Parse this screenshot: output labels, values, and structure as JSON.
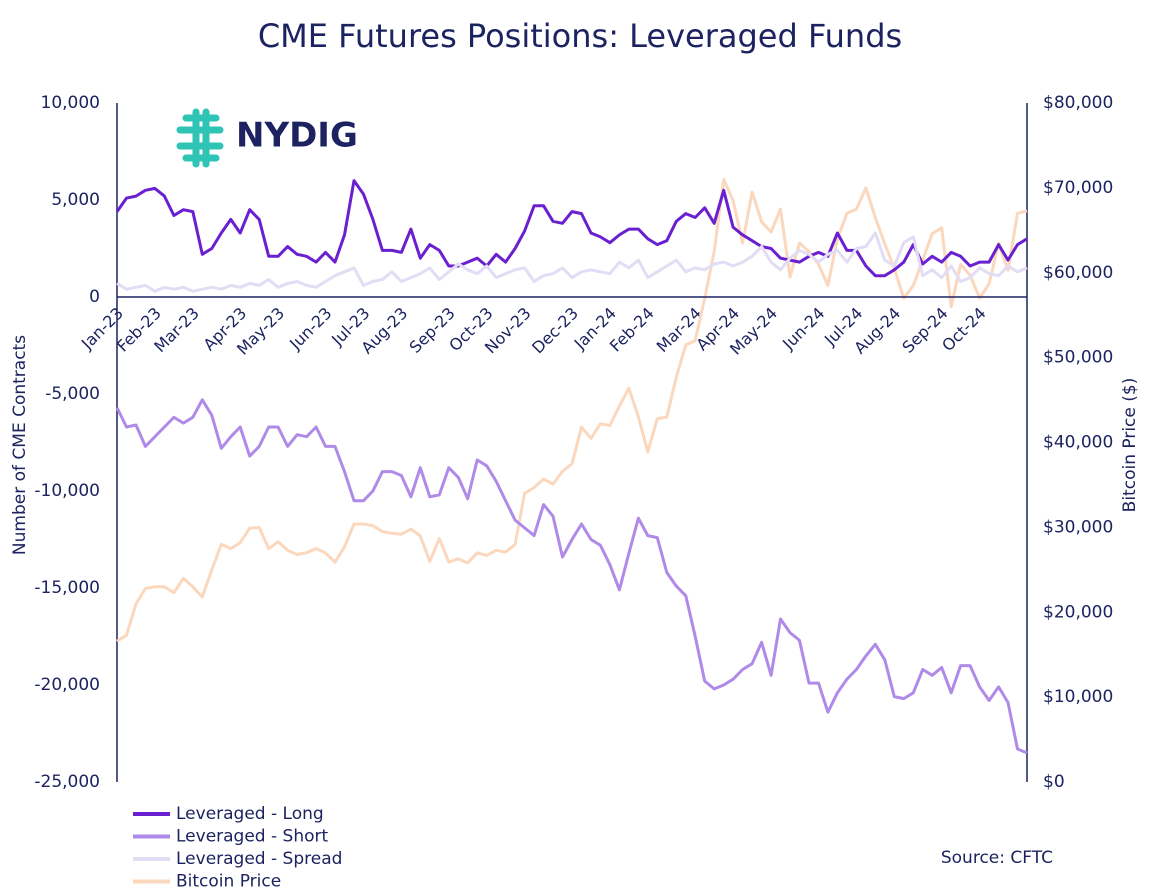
{
  "logo": "NYDIG",
  "chart_data": {
    "type": "line",
    "title": "CME Futures Positions: Leveraged Funds",
    "y_label": "Number of CME Contracts",
    "y2_label": "Bitcoin Price ($)",
    "source": "Source: CFTC",
    "categories": [
      "Jan-23",
      null,
      null,
      null,
      "Feb-23",
      null,
      null,
      null,
      "Mar-23",
      null,
      null,
      null,
      null,
      "Apr-23",
      null,
      null,
      null,
      "May-23",
      null,
      null,
      null,
      null,
      "Jun-23",
      null,
      null,
      null,
      "Jul-23",
      null,
      null,
      null,
      "Aug-23",
      null,
      null,
      null,
      null,
      "Sep-23",
      null,
      null,
      null,
      "Oct-23",
      null,
      null,
      null,
      "Nov-23",
      null,
      null,
      null,
      null,
      "Dec-23",
      null,
      null,
      null,
      "Jan-24",
      null,
      null,
      null,
      "Feb-24",
      null,
      null,
      null,
      null,
      "Mar-24",
      null,
      null,
      null,
      "Apr-24",
      null,
      null,
      null,
      "May-24",
      null,
      null,
      null,
      null,
      "Jun-24",
      null,
      null,
      null,
      "Jul-24",
      null,
      null,
      null,
      "Aug-24",
      null,
      null,
      null,
      null,
      "Sep-24",
      null,
      null,
      null,
      "Oct-24",
      null,
      null,
      null,
      null,
      null
    ],
    "ylim": [
      -25000,
      10000
    ],
    "yticks": [
      {
        "value": -25000,
        "label": "-25,000"
      },
      {
        "value": -20000,
        "label": "-20,000"
      },
      {
        "value": -15000,
        "label": "-15,000"
      },
      {
        "value": -10000,
        "label": "-10,000"
      },
      {
        "value": -5000,
        "label": "-5,000"
      },
      0,
      {
        "value": 5000,
        "label": "5,000"
      },
      {
        "value": 10000,
        "label": "10,000"
      }
    ],
    "y2lim": [
      0,
      80000
    ],
    "y2ticks": [
      {
        "value": 0,
        "label": "$0"
      },
      {
        "value": 10000,
        "label": "$10,000"
      },
      {
        "value": 20000,
        "label": "$20,000"
      },
      {
        "value": 30000,
        "label": "$30,000"
      },
      {
        "value": 40000,
        "label": "$40,000"
      },
      {
        "value": 50000,
        "label": "$50,000"
      },
      {
        "value": 60000,
        "label": "$60,000"
      },
      {
        "value": 70000,
        "label": "$70,000"
      },
      {
        "value": 80000,
        "label": "$80,000"
      }
    ],
    "legend": "bottom-left",
    "series": [
      {
        "name": "Leveraged - Long",
        "color": "#6a1fd0",
        "values": [
          4400,
          5100,
          5200,
          5500,
          5600,
          5200,
          4200,
          4500,
          4400,
          2200,
          2500,
          3300,
          4000,
          3300,
          4500,
          4000,
          2100,
          2100,
          2600,
          2200,
          2100,
          1800,
          2300,
          1800,
          3200,
          6000,
          5300,
          4000,
          2400,
          2400,
          2300,
          3500,
          2000,
          2700,
          2400,
          1600,
          1600,
          1800,
          2000,
          1600,
          2200,
          1800,
          2500,
          3400,
          4700,
          4700,
          3900,
          3800,
          4400,
          4300,
          3300,
          3100,
          2800,
          3200,
          3500,
          3500,
          3000,
          2700,
          2900,
          3900,
          4300,
          4100,
          4600,
          3800,
          5500,
          3600,
          3200,
          2900,
          2600,
          2500,
          2000,
          1900,
          1800,
          2100,
          2300,
          2100,
          3300,
          2400,
          2400,
          1600,
          1100,
          1100,
          1400,
          1800,
          2700,
          1700,
          2100,
          1800,
          2300,
          2100,
          1600,
          1800,
          1800,
          2700,
          1900,
          2700,
          3000
        ]
      },
      {
        "name": "Leveraged - Short",
        "color": "#b08ae8",
        "values": [
          -5700,
          -6700,
          -6600,
          -7700,
          -7200,
          -6700,
          -6200,
          -6500,
          -6200,
          -5300,
          -6100,
          -7800,
          -7200,
          -6700,
          -8200,
          -7700,
          -6700,
          -6700,
          -7700,
          -7100,
          -7200,
          -6700,
          -7700,
          -7700,
          -9000,
          -10500,
          -10500,
          -10000,
          -9000,
          -9000,
          -9200,
          -10300,
          -8800,
          -10300,
          -10200,
          -8800,
          -9300,
          -10400,
          -8400,
          -8700,
          -9500,
          -10500,
          -11500,
          -11900,
          -12300,
          -10700,
          -11300,
          -13400,
          -12500,
          -11700,
          -12500,
          -12800,
          -13800,
          -15100,
          -13200,
          -11400,
          -12300,
          -12400,
          -14200,
          -14900,
          -15400,
          -17500,
          -19800,
          -20200,
          -20000,
          -19700,
          -19200,
          -18900,
          -17800,
          -19500,
          -16600,
          -17300,
          -17700,
          -19900,
          -19900,
          -21400,
          -20400,
          -19700,
          -19200,
          -18500,
          -17900,
          -18700,
          -20600,
          -20700,
          -20400,
          -19200,
          -19500,
          -19100,
          -20400,
          -19000,
          -19000,
          -20100,
          -20800,
          -20100,
          -20900,
          -23300,
          -23500
        ]
      },
      {
        "name": "Leveraged - Spread",
        "color": "#e3dcf5",
        "values": [
          700,
          400,
          500,
          600,
          300,
          500,
          400,
          500,
          300,
          400,
          500,
          400,
          600,
          500,
          700,
          600,
          900,
          500,
          700,
          800,
          600,
          500,
          800,
          1100,
          1300,
          1500,
          600,
          800,
          900,
          1300,
          800,
          1000,
          1200,
          1500,
          900,
          1300,
          1700,
          1400,
          1200,
          1600,
          1000,
          1200,
          1400,
          1500,
          800,
          1100,
          1200,
          1500,
          1000,
          1300,
          1400,
          1300,
          1200,
          1800,
          1500,
          1900,
          1000,
          1300,
          1600,
          1900,
          1300,
          1500,
          1400,
          1700,
          1800,
          1600,
          1800,
          2100,
          2600,
          1800,
          1400,
          2000,
          2400,
          2200,
          1800,
          2200,
          2400,
          1800,
          2500,
          2600,
          3300,
          1900,
          1600,
          2800,
          3100,
          1100,
          1400,
          1000,
          1600,
          800,
          1000,
          1500,
          1200,
          1100,
          1600,
          1300,
          1500
        ]
      },
      {
        "name": "Bitcoin Price",
        "color": "#fbd8bd",
        "axis": "y2",
        "values": [
          16600,
          17300,
          21000,
          22800,
          23000,
          23000,
          22300,
          24000,
          23000,
          21800,
          25000,
          28000,
          27500,
          28200,
          29900,
          30000,
          27500,
          28300,
          27300,
          26800,
          27000,
          27500,
          27000,
          25900,
          27700,
          30400,
          30400,
          30200,
          29500,
          29300,
          29200,
          29800,
          29000,
          26000,
          28700,
          25900,
          26300,
          25800,
          27000,
          26700,
          27300,
          27100,
          28000,
          34000,
          34700,
          35700,
          35100,
          36600,
          37500,
          41800,
          40500,
          42200,
          42000,
          44300,
          46400,
          43000,
          38900,
          42800,
          43000,
          47700,
          51500,
          52000,
          57000,
          62500,
          71000,
          68500,
          63500,
          69500,
          66000,
          64800,
          67500,
          59500,
          63500,
          62500,
          61000,
          58500,
          64000,
          67000,
          67500,
          70000,
          66500,
          63400,
          60500,
          57000,
          58500,
          61500,
          64600,
          65300,
          56000,
          61000,
          59700,
          57000,
          58700,
          63500,
          60300,
          67000,
          67300
        ]
      }
    ]
  }
}
